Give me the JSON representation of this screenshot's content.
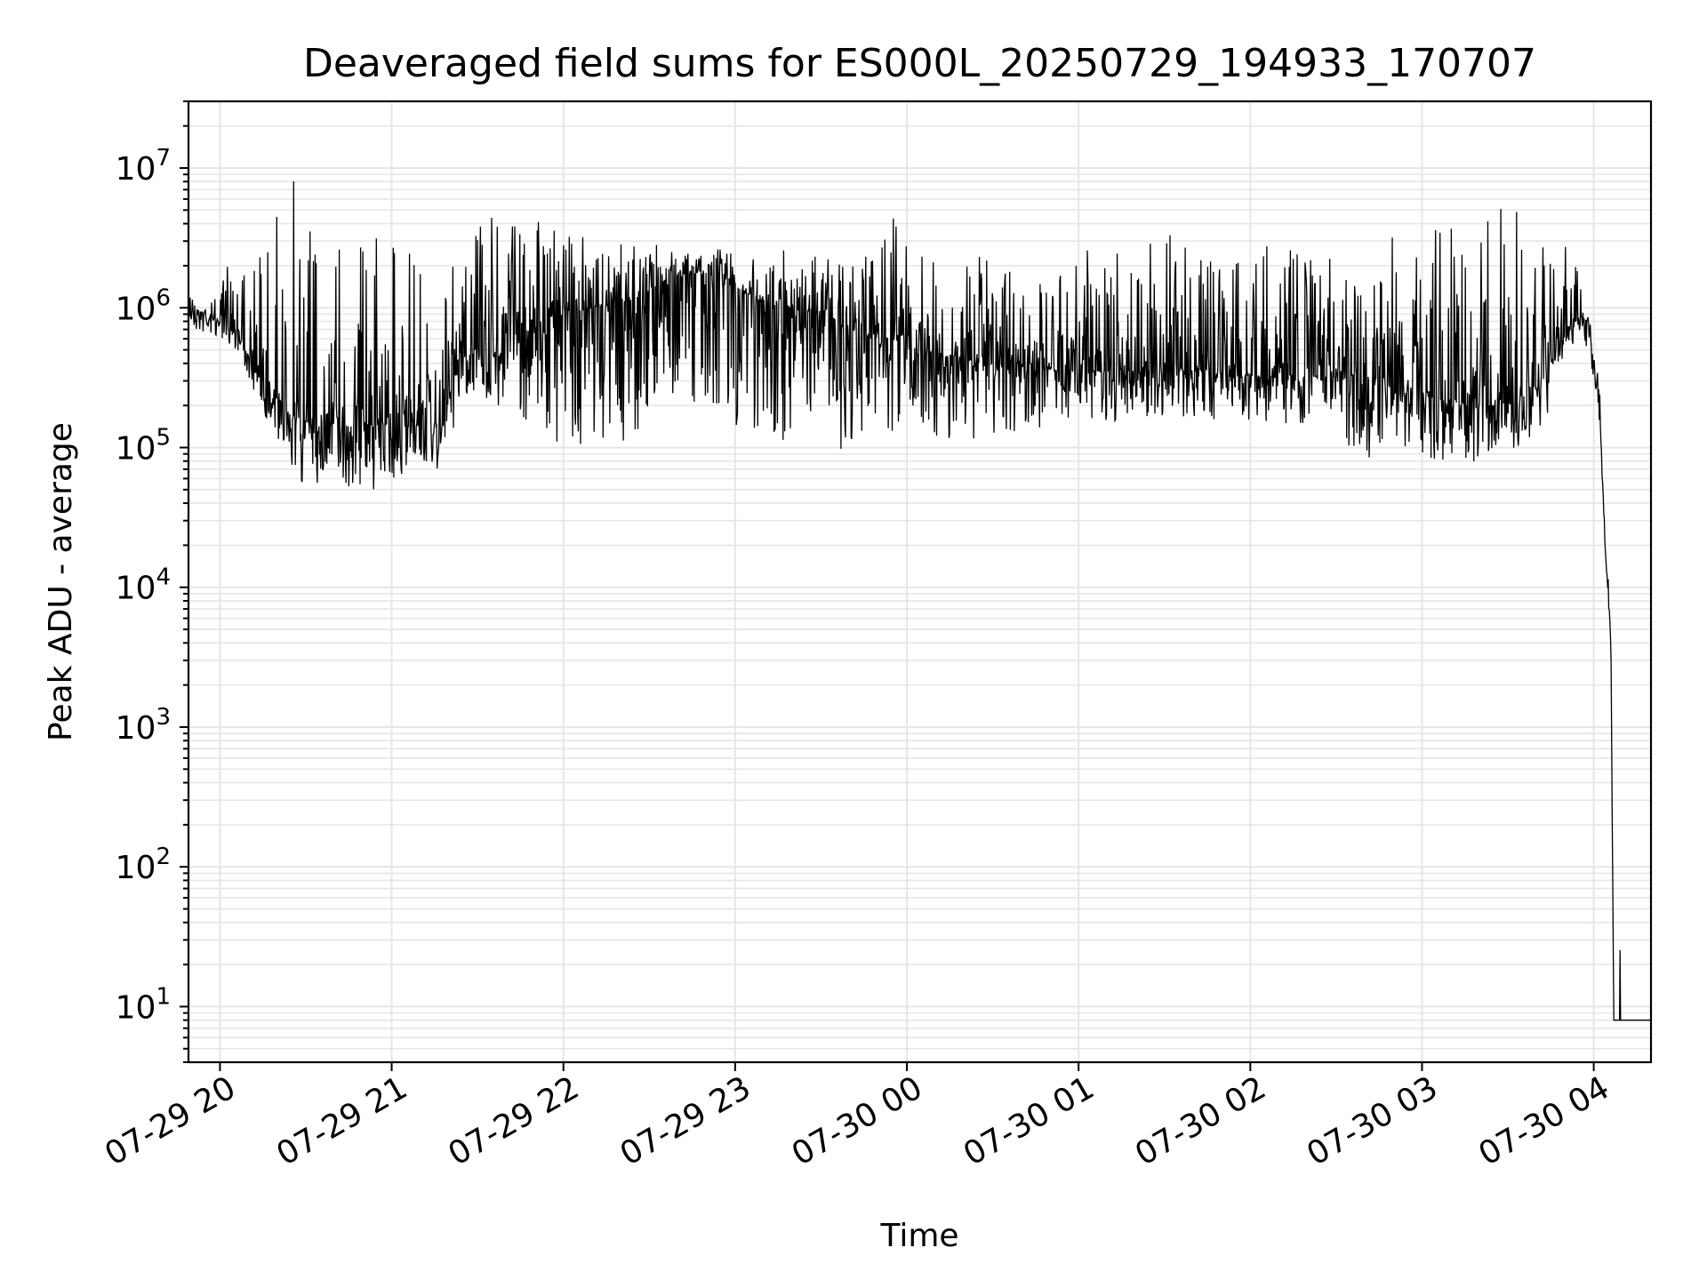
{
  "chart_data": {
    "type": "line",
    "title": "Deaveraged field sums for ES000L_20250729_194933_170707",
    "xlabel": "Time",
    "ylabel": "Peak ADU - average",
    "y_scale": "log",
    "ylim": [
      4,
      30000000
    ],
    "xlim": [
      "2025-07-29 19:49",
      "2025-07-30 04:20"
    ],
    "grid": true,
    "x_ticks": [
      {
        "value": "2025-07-29 20:00",
        "label": "07-29 20"
      },
      {
        "value": "2025-07-29 21:00",
        "label": "07-29 21"
      },
      {
        "value": "2025-07-29 22:00",
        "label": "07-29 22"
      },
      {
        "value": "2025-07-29 23:00",
        "label": "07-29 23"
      },
      {
        "value": "2025-07-30 00:00",
        "label": "07-30 00"
      },
      {
        "value": "2025-07-30 01:00",
        "label": "07-30 01"
      },
      {
        "value": "2025-07-30 02:00",
        "label": "07-30 02"
      },
      {
        "value": "2025-07-30 03:00",
        "label": "07-30 03"
      },
      {
        "value": "2025-07-30 04:00",
        "label": "07-30 04"
      }
    ],
    "y_ticks": [
      {
        "value": 10,
        "base": "10",
        "exp": "1"
      },
      {
        "value": 100,
        "base": "10",
        "exp": "2"
      },
      {
        "value": 1000,
        "base": "10",
        "exp": "3"
      },
      {
        "value": 10000,
        "base": "10",
        "exp": "4"
      },
      {
        "value": 100000,
        "base": "10",
        "exp": "5"
      },
      {
        "value": 1000000,
        "base": "10",
        "exp": "6"
      },
      {
        "value": 10000000,
        "base": "10",
        "exp": "7"
      }
    ],
    "series": [
      {
        "color": "#000000",
        "x": [
          "2025-07-29 19:49",
          "2025-07-29 20:00",
          "2025-07-29 20:06",
          "2025-07-29 20:12",
          "2025-07-29 20:24",
          "2025-07-29 20:30",
          "2025-07-29 20:36",
          "2025-07-29 20:48",
          "2025-07-29 20:54",
          "2025-07-29 21:06",
          "2025-07-29 21:18",
          "2025-07-29 21:24",
          "2025-07-29 21:36",
          "2025-07-29 21:48",
          "2025-07-29 22:00",
          "2025-07-29 22:12",
          "2025-07-29 22:24",
          "2025-07-29 22:36",
          "2025-07-29 22:42",
          "2025-07-29 22:54",
          "2025-07-29 23:06",
          "2025-07-29 23:18",
          "2025-07-29 23:30",
          "2025-07-29 23:42",
          "2025-07-29 23:54",
          "2025-07-30 00:06",
          "2025-07-30 00:18",
          "2025-07-30 00:30",
          "2025-07-30 00:42",
          "2025-07-30 00:54",
          "2025-07-30 01:06",
          "2025-07-30 01:18",
          "2025-07-30 01:30",
          "2025-07-30 01:42",
          "2025-07-30 01:54",
          "2025-07-30 02:06",
          "2025-07-30 02:18",
          "2025-07-30 02:30",
          "2025-07-30 02:40",
          "2025-07-30 02:48",
          "2025-07-30 02:54",
          "2025-07-30 03:06",
          "2025-07-30 03:18",
          "2025-07-30 03:30",
          "2025-07-30 03:42",
          "2025-07-30 03:48",
          "2025-07-30 03:54",
          "2025-07-30 03:58",
          "2025-07-30 04:02",
          "2025-07-30 04:04",
          "2025-07-30 04:06",
          "2025-07-30 04:07",
          "2025-07-30 04:10",
          "2025-07-30 04:20"
        ],
        "median": [
          1000000,
          800000,
          700000,
          350000,
          180000,
          150000,
          150000,
          140000,
          150000,
          140000,
          150000,
          500000,
          450000,
          800000,
          900000,
          1000000,
          1100000,
          1600000,
          1800000,
          1700000,
          1200000,
          1000000,
          900000,
          700000,
          600000,
          500000,
          450000,
          400000,
          400000,
          350000,
          350000,
          350000,
          380000,
          350000,
          330000,
          320000,
          330000,
          320000,
          330000,
          300000,
          280000,
          220000,
          200000,
          200000,
          280000,
          600000,
          900000,
          800000,
          200000,
          20000,
          4000,
          8,
          8,
          8
        ],
        "low": [
          700000,
          600000,
          500000,
          250000,
          70000,
          50000,
          55000,
          50000,
          50000,
          60000,
          70000,
          200000,
          200000,
          150000,
          100000,
          100000,
          110000,
          250000,
          200000,
          150000,
          120000,
          100000,
          90000,
          100000,
          120000,
          120000,
          110000,
          120000,
          130000,
          140000,
          150000,
          160000,
          170000,
          160000,
          150000,
          140000,
          150000,
          140000,
          65000,
          130000,
          100000,
          80000,
          75000,
          90000,
          120000,
          400000,
          600000,
          500000,
          150000,
          18000,
          3500,
          8,
          8,
          8
        ],
        "high": [
          1400000,
          1200000,
          6000000,
          2500000,
          15000000,
          9000000,
          4000000,
          15500000,
          3500000,
          3000000,
          2800000,
          2000000,
          6800000,
          5200000,
          3600000,
          3300000,
          3000000,
          3000000,
          2500000,
          2900000,
          2700000,
          2600000,
          2300000,
          2000000,
          4800000,
          2700000,
          2600000,
          2200000,
          2000000,
          1900000,
          3300000,
          2300000,
          3800000,
          2500000,
          2400000,
          2800000,
          2500000,
          2200000,
          1400000,
          3300000,
          3400000,
          3800000,
          3500000,
          6800000,
          4500000,
          4500000,
          1900000,
          1400000,
          300000,
          30000,
          5000,
          8,
          8,
          27
        ]
      }
    ]
  }
}
